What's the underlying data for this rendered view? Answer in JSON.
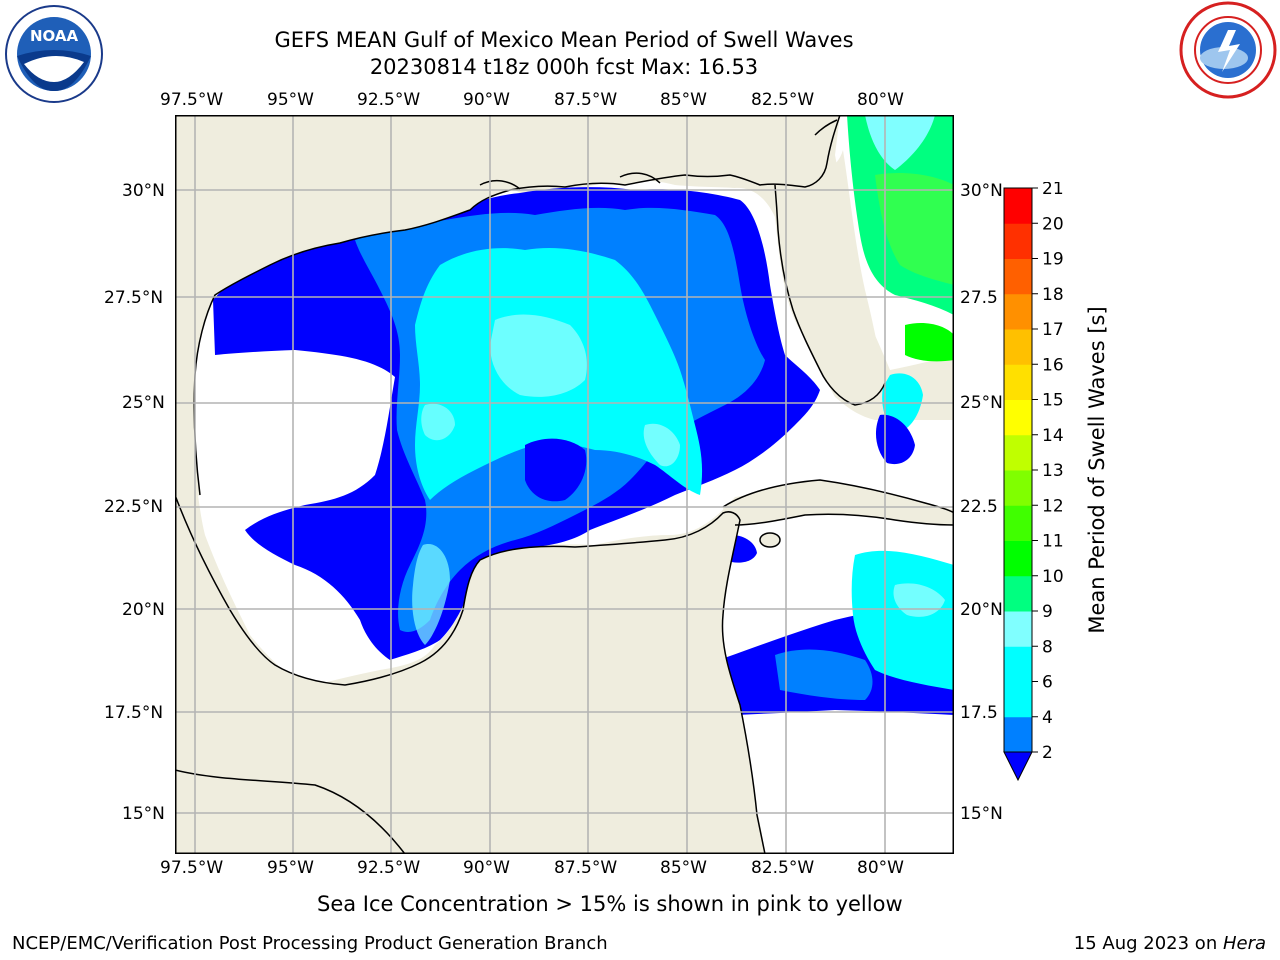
{
  "header": {
    "title_line1": "GEFS MEAN Gulf of Mexico Mean Period of Swell Waves",
    "title_line2": "20230814 t18z 000h fcst   Max: 16.53"
  },
  "logos": {
    "left": {
      "icon": "noaa-logo",
      "lettering": "NATIONAL OCEANIC AND ATMOSPHERIC ADMINISTRATION U.S. DEPARTMENT OF COMMERCE",
      "center_text": "NOAA"
    },
    "right": {
      "icon": "national-weather-service-logo",
      "lettering": "NATIONAL WEATHER SERVICE"
    }
  },
  "map": {
    "lon_ticks": [
      "97.5°W",
      "95°W",
      "92.5°W",
      "90°W",
      "87.5°W",
      "85°W",
      "82.5°W",
      "80°W"
    ],
    "lat_ticks_left": [
      "30°N",
      "27.5°N",
      "25°N",
      "22.5°N",
      "20°N",
      "17.5°N",
      "15°N"
    ],
    "lat_ticks_right": [
      "30°N",
      "27.5",
      "25°N",
      "22.5",
      "20°N",
      "17.5",
      "15°N"
    ],
    "lon_range": [
      -98,
      -78.2
    ],
    "lat_range": [
      14,
      31.5
    ],
    "colors": {
      "land": "#efedde",
      "ocean_missing": "#ffffff",
      "coast": "#000000",
      "grid": "#b4b4b4"
    }
  },
  "colorbar": {
    "label": "Mean Period of Swell Waves [s]",
    "ticks": [
      "2",
      "4",
      "6",
      "8",
      "9",
      "10",
      "11",
      "12",
      "13",
      "14",
      "15",
      "16",
      "17",
      "18",
      "19",
      "20",
      "21"
    ],
    "colors": [
      "#0000ff",
      "#0080ff",
      "#00ffff",
      "#00ffff",
      "#80ffff",
      "#00ff80",
      "#00ff00",
      "#40ff00",
      "#80ff00",
      "#c0ff00",
      "#ffff00",
      "#ffe000",
      "#ffc000",
      "#ff9000",
      "#ff6000",
      "#ff3000",
      "#ff0000"
    ]
  },
  "note": "Sea Ice Concentration > 15% is shown in pink to yellow",
  "footer": {
    "left": "NCEP/EMC/Verification Post Processing Product Generation Branch",
    "right_date": "15 Aug 2023 on ",
    "right_host": "Hera"
  }
}
